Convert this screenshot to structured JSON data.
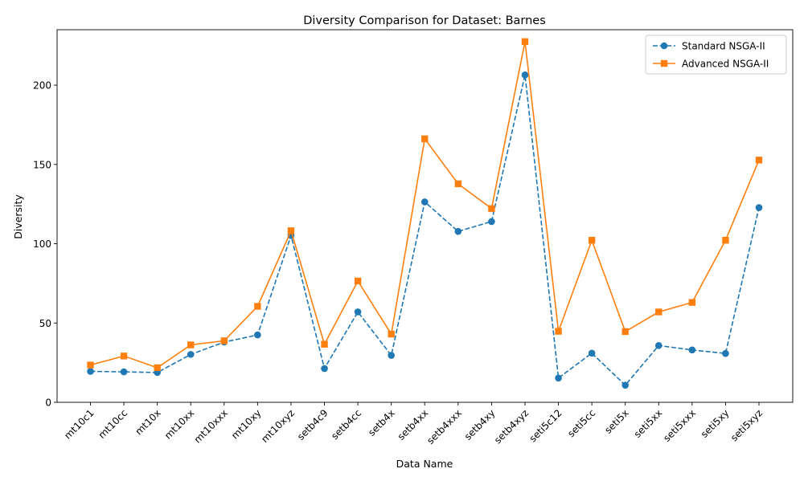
{
  "chart_data": {
    "type": "line",
    "title": "Diversity Comparison for Dataset: Barnes",
    "xlabel": "Data Name",
    "ylabel": "Diversity",
    "ylim": [
      0,
      235
    ],
    "yticks": [
      0,
      50,
      100,
      150,
      200
    ],
    "categories": [
      "mt10c1",
      "mt10cc",
      "mt10x",
      "mt10xx",
      "mt10xxx",
      "mt10xy",
      "mt10xyz",
      "setb4c9",
      "setb4cc",
      "setb4x",
      "setb4xx",
      "setb4xxx",
      "setb4xy",
      "setb4xyz",
      "seti5c12",
      "seti5cc",
      "seti5x",
      "seti5xx",
      "seti5xxx",
      "seti5xy",
      "seti5xyz"
    ],
    "series": [
      {
        "name": "Standard NSGA-II",
        "color": "#1f77b4",
        "marker": "circle",
        "line_style": "dashed",
        "values": [
          19.5,
          19.2,
          18.8,
          30.2,
          38.0,
          42.5,
          105.2,
          21.3,
          57.0,
          29.6,
          126.4,
          107.8,
          114.0,
          206.5,
          15.3,
          31.0,
          10.8,
          35.8,
          33.0,
          30.8,
          122.8
        ]
      },
      {
        "name": "Advanced NSGA-II",
        "color": "#ff7f0e",
        "marker": "square",
        "line_style": "solid",
        "values": [
          23.5,
          29.2,
          21.8,
          36.2,
          38.8,
          60.5,
          108.2,
          36.6,
          76.5,
          43.0,
          166.2,
          137.8,
          122.2,
          227.5,
          44.8,
          102.2,
          44.6,
          57.0,
          63.0,
          102.2,
          152.8
        ]
      }
    ],
    "legend_position": "top-right",
    "grid": false
  }
}
